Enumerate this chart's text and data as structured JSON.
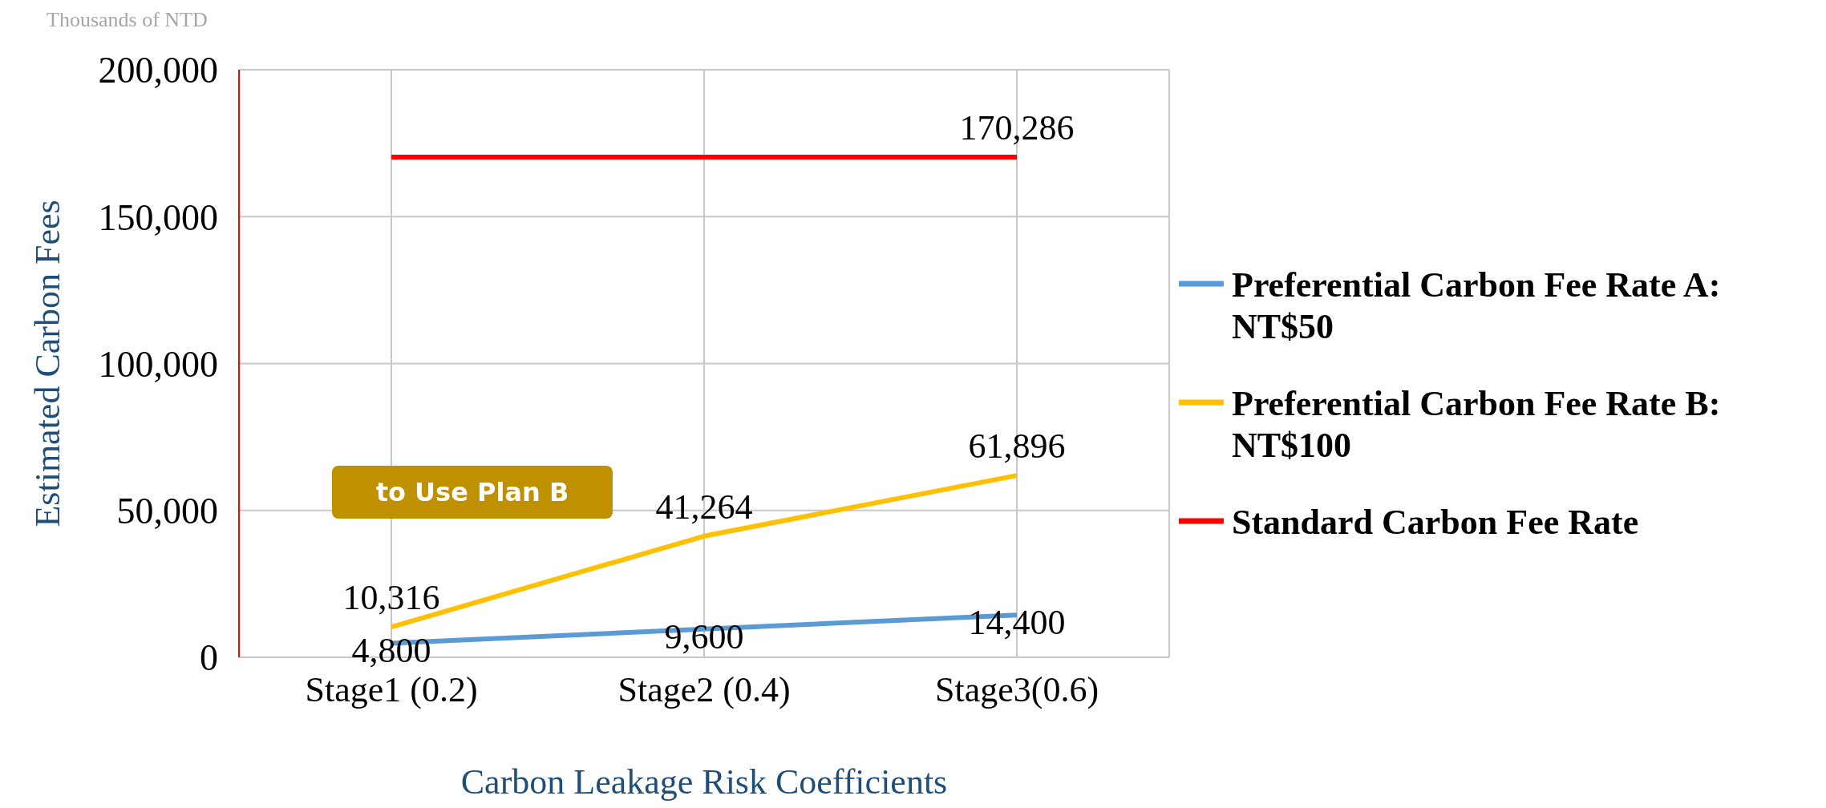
{
  "chart_data": {
    "type": "line",
    "xlabel": "Carbon Leakage Risk Coefficients",
    "ylabel": "Estimated Carbon Fees",
    "annotations": [
      "Thousands of NTD",
      "to Use Plan B"
    ],
    "categories": [
      "Stage1 (0.2)",
      "Stage2 (0.4)",
      "Stage3(0.6)"
    ],
    "series": [
      {
        "name": "Preferential Carbon Fee Rate A: NT$50",
        "color": "#5b9bd5",
        "values": [
          4800,
          9600,
          14400
        ],
        "value_labels": [
          "4,800",
          "9,600",
          "14,400"
        ]
      },
      {
        "name": "Preferential Carbon Fee Rate B: NT$100",
        "color": "#ffc000",
        "values": [
          10316,
          41264,
          61896
        ],
        "value_labels": [
          "10,316",
          "41,264",
          "61,896"
        ]
      },
      {
        "name": "Standard Carbon Fee Rate",
        "color": "#ff0000",
        "values": [
          170286,
          170286,
          170286
        ],
        "value_labels": [
          null,
          null,
          "170,286"
        ]
      }
    ],
    "ylim": [
      0,
      200000
    ],
    "yticks": [
      0,
      {
        "value": 50000,
        "label": "50,000"
      },
      {
        "value": 100000,
        "label": "100,000"
      },
      {
        "value": 150000,
        "label": "150,000"
      },
      {
        "value": 200000,
        "label": "200,000"
      }
    ],
    "grid": true,
    "legend": "right"
  }
}
